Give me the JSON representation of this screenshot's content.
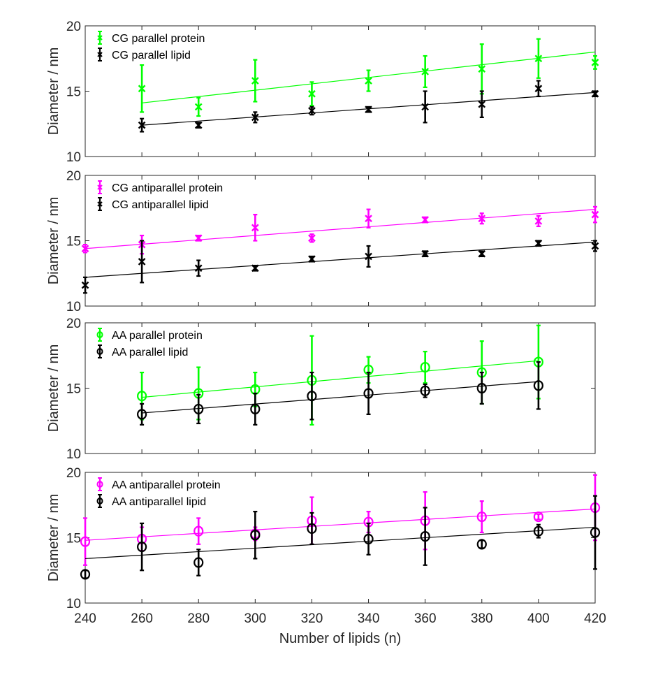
{
  "chart_data": [
    {
      "type": "scatter",
      "ylabel": "Diameter / nm",
      "ylim": [
        10,
        20
      ],
      "xlim": [
        240,
        420
      ],
      "yticks": [
        10,
        15,
        20
      ],
      "marker": "x",
      "legend_position": "top-left",
      "series": [
        {
          "name": "CG parallel protein",
          "color": "#00ff00",
          "x": [
            260,
            280,
            300,
            320,
            340,
            360,
            380,
            400,
            420
          ],
          "y": [
            15.2,
            13.8,
            15.8,
            14.8,
            15.8,
            16.5,
            16.7,
            17.5,
            17.2
          ],
          "err": [
            1.8,
            0.7,
            1.6,
            0.9,
            0.8,
            1.2,
            1.9,
            1.5,
            0.5
          ],
          "fit": [
            [
              260,
              14.1
            ],
            [
              420,
              18.0
            ]
          ]
        },
        {
          "name": "CG parallel lipid",
          "color": "#000000",
          "x": [
            260,
            280,
            300,
            320,
            340,
            360,
            380,
            400,
            420
          ],
          "y": [
            12.4,
            12.4,
            13.0,
            13.5,
            13.6,
            13.8,
            14.0,
            15.2,
            14.8
          ],
          "err": [
            0.5,
            0.2,
            0.4,
            0.3,
            0.2,
            1.2,
            1.0,
            0.6,
            0.2
          ],
          "fit": [
            [
              260,
              12.4
            ],
            [
              420,
              14.9
            ]
          ]
        }
      ]
    },
    {
      "type": "scatter",
      "ylabel": "Diameter / nm",
      "ylim": [
        10,
        20
      ],
      "xlim": [
        240,
        420
      ],
      "yticks": [
        10,
        15,
        20
      ],
      "marker": "x",
      "legend_position": "top-left",
      "series": [
        {
          "name": "CG antiparallel protein",
          "color": "#ff00ff",
          "x": [
            240,
            260,
            280,
            300,
            320,
            340,
            360,
            380,
            400,
            420
          ],
          "y": [
            14.4,
            14.7,
            15.2,
            16.0,
            15.2,
            16.7,
            16.6,
            16.7,
            16.5,
            17.0
          ],
          "err": [
            0.3,
            0.7,
            0.2,
            1.0,
            0.3,
            0.7,
            0.2,
            0.4,
            0.4,
            0.6
          ],
          "fit": [
            [
              240,
              14.4
            ],
            [
              420,
              17.4
            ]
          ]
        },
        {
          "name": "CG antiparallel lipid",
          "color": "#000000",
          "x": [
            240,
            260,
            280,
            300,
            320,
            340,
            360,
            380,
            400,
            420
          ],
          "y": [
            11.6,
            13.4,
            12.9,
            12.9,
            13.6,
            13.8,
            14.0,
            14.0,
            14.8,
            14.6
          ],
          "err": [
            0.6,
            1.6,
            0.6,
            0.2,
            0.2,
            0.8,
            0.2,
            0.2,
            0.2,
            0.4
          ],
          "fit": [
            [
              240,
              12.2
            ],
            [
              420,
              14.9
            ]
          ]
        }
      ]
    },
    {
      "type": "scatter",
      "ylabel": "Diameter / nm",
      "ylim": [
        10,
        20
      ],
      "xlim": [
        240,
        420
      ],
      "yticks": [
        10,
        15,
        20
      ],
      "marker": "o",
      "legend_position": "top-left",
      "series": [
        {
          "name": "AA parallel protein",
          "color": "#00ff00",
          "x": [
            260,
            280,
            300,
            320,
            340,
            360,
            380,
            400
          ],
          "y": [
            14.4,
            14.6,
            14.9,
            15.6,
            16.4,
            16.6,
            16.2,
            17.0
          ],
          "err": [
            1.8,
            2.0,
            1.3,
            3.4,
            1.0,
            1.2,
            2.4,
            2.8
          ],
          "fit": [
            [
              260,
              14.3
            ],
            [
              400,
              17.1
            ]
          ]
        },
        {
          "name": "AA parallel lipid",
          "color": "#000000",
          "x": [
            260,
            280,
            300,
            320,
            340,
            360,
            380,
            400
          ],
          "y": [
            13.0,
            13.4,
            13.4,
            14.4,
            14.6,
            14.8,
            15.0,
            15.2
          ],
          "err": [
            0.8,
            1.1,
            1.2,
            1.8,
            1.6,
            0.5,
            1.2,
            1.8
          ],
          "fit": [
            [
              260,
              13.1
            ],
            [
              400,
              15.5
            ]
          ]
        }
      ]
    },
    {
      "type": "scatter",
      "ylabel": "Diameter / nm",
      "xlabel": "Number of lipids (n)",
      "ylim": [
        10,
        20
      ],
      "xlim": [
        240,
        420
      ],
      "yticks": [
        10,
        15,
        20
      ],
      "xticks": [
        240,
        260,
        280,
        300,
        320,
        340,
        360,
        380,
        400,
        420
      ],
      "marker": "o",
      "legend_position": "top-left",
      "series": [
        {
          "name": "AA antiparallel protein",
          "color": "#ff00ff",
          "x": [
            240,
            260,
            280,
            300,
            320,
            340,
            360,
            380,
            400,
            420
          ],
          "y": [
            14.7,
            14.9,
            15.5,
            15.3,
            16.3,
            16.2,
            16.3,
            16.6,
            16.6,
            17.3
          ],
          "err": [
            1.8,
            0.9,
            1.0,
            0.5,
            1.8,
            0.8,
            2.2,
            1.2,
            0.2,
            2.5
          ],
          "fit": [
            [
              240,
              14.8
            ],
            [
              420,
              17.2
            ]
          ]
        },
        {
          "name": "AA antiparallel lipid",
          "color": "#000000",
          "x": [
            240,
            260,
            280,
            300,
            320,
            340,
            360,
            380,
            400,
            420
          ],
          "y": [
            12.2,
            14.3,
            13.1,
            15.2,
            15.7,
            14.9,
            15.1,
            14.5,
            15.5,
            15.4
          ],
          "err": [
            0.3,
            1.8,
            1.0,
            1.8,
            1.2,
            1.2,
            2.2,
            0.3,
            0.5,
            2.8
          ],
          "fit": [
            [
              240,
              13.4
            ],
            [
              420,
              15.8
            ]
          ]
        }
      ]
    }
  ]
}
